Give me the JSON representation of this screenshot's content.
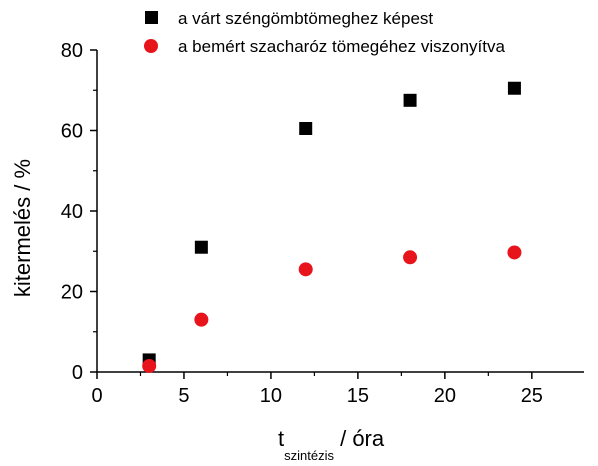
{
  "chart_data": {
    "type": "scatter",
    "xlabel_main": "t",
    "xlabel_sub": "szintézis",
    "xlabel_unit": " / óra",
    "ylabel": "kitermelés / %",
    "xlim": [
      0,
      28
    ],
    "ylim": [
      0,
      80
    ],
    "x_ticks": [
      0,
      5,
      10,
      15,
      20,
      25
    ],
    "y_ticks": [
      0,
      20,
      40,
      60,
      80
    ],
    "grid": false,
    "legend_position": "top",
    "series": [
      {
        "name": "a várt széngömbtömeghez képest",
        "marker": "square",
        "color": "#000000",
        "x": [
          3,
          6,
          12,
          18,
          24
        ],
        "y": [
          3,
          31,
          60.5,
          67.5,
          70.5
        ]
      },
      {
        "name": "a bemért szacharóz tömegéhez viszonyítva",
        "marker": "circle",
        "color": "#e8141c",
        "x": [
          3,
          6,
          12,
          18,
          24
        ],
        "y": [
          1.5,
          13,
          25.5,
          28.5,
          29.7
        ]
      }
    ]
  }
}
